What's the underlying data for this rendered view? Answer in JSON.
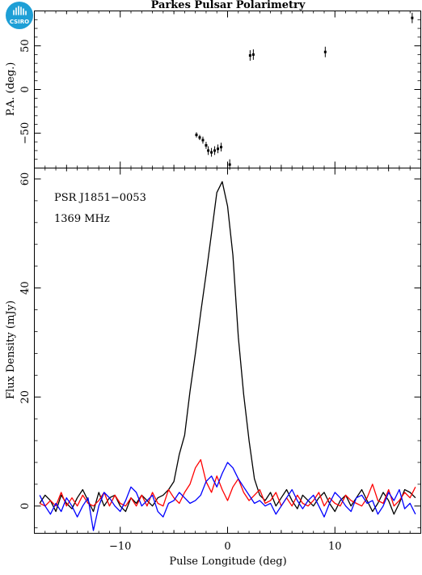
{
  "logo": {
    "text": "CSIRO",
    "color": "#1e9fd6"
  },
  "colors": {
    "total_intensity": "#000000",
    "linear_polarization": "#ff0000",
    "circular_polarization": "#0000ff"
  },
  "chart_data": [
    {
      "type": "scatter",
      "title": "Parkes Pulsar Polarimetry",
      "ylabel": "P.A. (deg.)",
      "xlim": [
        -18,
        18
      ],
      "ylim": [
        -90,
        90
      ],
      "yticks": [
        -50,
        0,
        50
      ],
      "xticks": [
        -10,
        0,
        10
      ],
      "series": [
        {
          "x": [
            -2.9,
            -2.6,
            -2.3,
            -2.0,
            -1.8,
            -1.5,
            -1.2,
            -0.9,
            -0.6,
            0.2,
            2.1,
            2.4,
            9.1,
            17.2
          ],
          "y": [
            -52,
            -55,
            -58,
            -64,
            -70,
            -72,
            -70,
            -68,
            -66,
            -86,
            39,
            40,
            43,
            82
          ],
          "err": [
            3,
            3,
            4,
            4,
            5,
            5,
            5,
            5,
            5,
            6,
            6,
            6,
            6,
            6
          ]
        }
      ]
    },
    {
      "type": "line",
      "xlabel": "Pulse Longitude (deg)",
      "ylabel": "Flux Density (mJy)",
      "annotations": [
        "PSR J1851−0053",
        "1369 MHz"
      ],
      "xlim": [
        -18,
        18
      ],
      "ylim": [
        -5,
        62
      ],
      "xticks": [
        -10,
        0,
        10
      ],
      "yticks": [
        0,
        20,
        40,
        60
      ],
      "x": [
        -17.5,
        -17.0,
        -16.5,
        -16.0,
        -15.5,
        -15.0,
        -14.5,
        -14.0,
        -13.5,
        -13.0,
        -12.5,
        -12.0,
        -11.5,
        -11.0,
        -10.5,
        -10.0,
        -9.5,
        -9.0,
        -8.5,
        -8.0,
        -7.5,
        -7.0,
        -6.5,
        -6.0,
        -5.5,
        -5.0,
        -4.5,
        -4.0,
        -3.5,
        -3.0,
        -2.5,
        -2.0,
        -1.5,
        -1.0,
        -0.5,
        0.0,
        0.5,
        1.0,
        1.5,
        2.0,
        2.5,
        3.0,
        3.5,
        4.0,
        4.5,
        5.0,
        5.5,
        6.0,
        6.5,
        7.0,
        7.5,
        8.0,
        8.5,
        9.0,
        9.5,
        10.0,
        10.5,
        11.0,
        11.5,
        12.0,
        12.5,
        13.0,
        13.5,
        14.0,
        14.5,
        15.0,
        15.5,
        16.0,
        16.5,
        17.0,
        17.5
      ],
      "series": [
        {
          "color": "#000000",
          "values": [
            0.5,
            2.0,
            1.0,
            -1.0,
            2.0,
            0.5,
            -0.5,
            1.5,
            3.0,
            1.0,
            -1.0,
            2.5,
            0.0,
            1.5,
            2.0,
            0.0,
            -1.0,
            1.5,
            0.5,
            2.0,
            1.0,
            0.0,
            1.5,
            2.0,
            3.0,
            4.5,
            9.5,
            13.0,
            21.0,
            28.0,
            35.5,
            42.5,
            50.0,
            57.5,
            59.5,
            55.0,
            46.0,
            31.0,
            20.5,
            12.0,
            5.0,
            2.0,
            1.0,
            2.5,
            0.0,
            1.5,
            3.0,
            1.0,
            -0.5,
            2.0,
            1.0,
            0.0,
            1.5,
            2.5,
            0.5,
            -1.0,
            1.0,
            2.0,
            0.0,
            1.5,
            3.0,
            1.0,
            -1.0,
            0.5,
            2.5,
            1.0,
            -1.5,
            0.5,
            3.0,
            2.5,
            1.5
          ]
        },
        {
          "color": "#ff0000",
          "values": [
            0.5,
            0.0,
            1.0,
            0.0,
            2.5,
            0.0,
            1.5,
            0.0,
            2.0,
            0.5,
            0.0,
            1.0,
            2.5,
            0.0,
            2.0,
            0.5,
            0.0,
            1.5,
            0.0,
            2.0,
            0.0,
            2.5,
            0.5,
            0.0,
            3.0,
            1.5,
            0.5,
            2.5,
            4.0,
            7.0,
            8.5,
            4.5,
            2.5,
            5.5,
            3.0,
            1.0,
            3.5,
            5.0,
            2.5,
            1.0,
            2.0,
            3.0,
            0.5,
            1.0,
            2.5,
            0.0,
            1.5,
            0.0,
            2.0,
            0.5,
            0.0,
            1.0,
            2.5,
            0.0,
            1.5,
            0.5,
            0.0,
            2.0,
            1.0,
            0.5,
            0.0,
            1.5,
            4.0,
            1.0,
            0.5,
            3.0,
            0.0,
            1.0,
            2.5,
            1.5,
            3.5
          ]
        },
        {
          "color": "#0000ff",
          "values": [
            2.0,
            0.0,
            -1.5,
            0.5,
            -1.0,
            1.5,
            0.0,
            -2.0,
            0.0,
            1.5,
            -4.5,
            0.0,
            2.5,
            1.5,
            0.0,
            -1.0,
            1.0,
            3.5,
            2.5,
            0.0,
            1.0,
            2.0,
            -1.0,
            -2.0,
            0.5,
            1.0,
            2.5,
            1.5,
            0.5,
            1.0,
            2.0,
            4.5,
            5.5,
            3.5,
            6.0,
            8.0,
            7.0,
            5.0,
            3.5,
            2.0,
            0.5,
            1.0,
            0.0,
            0.5,
            -1.5,
            0.0,
            1.5,
            3.0,
            1.0,
            -0.5,
            1.0,
            2.0,
            0.0,
            -2.0,
            0.5,
            2.5,
            1.5,
            0.0,
            -1.0,
            1.5,
            2.0,
            0.5,
            1.0,
            -1.5,
            0.0,
            2.5,
            1.0,
            3.0,
            -0.5,
            0.5,
            -1.5
          ]
        }
      ]
    }
  ]
}
